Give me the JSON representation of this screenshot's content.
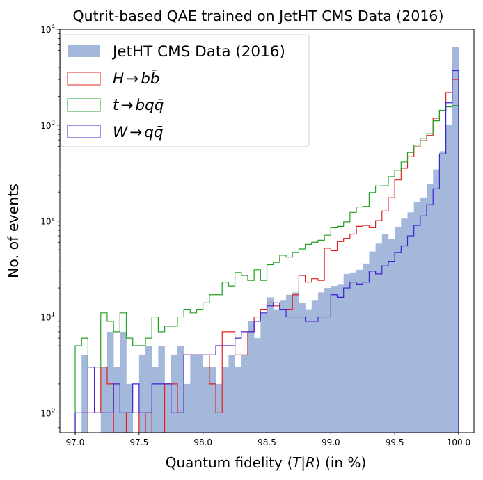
{
  "chart_data": {
    "type": "histogram",
    "title": "Qutrit-based QAE trained on JetHT CMS Data (2016)",
    "xlabel_text": "Quantum fidelity ⟨",
    "xlabel_T": "T",
    "xlabel_bar": "|",
    "xlabel_R": "R",
    "xlabel_tail": "⟩ (in %)",
    "ylabel": "No. of events",
    "yscale": "log",
    "xlim": [
      96.88,
      100.12
    ],
    "ylim": [
      0.62,
      10000
    ],
    "bin_edges_range": [
      97.0,
      100.0
    ],
    "n_bins": 60,
    "x_ticks": [
      {
        "value": 97.0,
        "label": "97.0"
      },
      {
        "value": 97.5,
        "label": "97.5"
      },
      {
        "value": 98.0,
        "label": "98.0"
      },
      {
        "value": 98.5,
        "label": "98.5"
      },
      {
        "value": 99.0,
        "label": "99.0"
      },
      {
        "value": 99.5,
        "label": "99.5"
      },
      {
        "value": 100.0,
        "label": "100.0"
      }
    ],
    "y_ticks": [
      {
        "value": 1,
        "base": "10",
        "exp": "0"
      },
      {
        "value": 10,
        "base": "10",
        "exp": "1"
      },
      {
        "value": 100,
        "base": "10",
        "exp": "2"
      },
      {
        "value": 1000,
        "base": "10",
        "exp": "3"
      },
      {
        "value": 10000,
        "base": "10",
        "exp": "4"
      }
    ],
    "legend_position": "upper-left",
    "series": [
      {
        "name": "JetHT CMS Data (2016)",
        "style": "filled",
        "color": "#a4b8db",
        "values": [
          0,
          4,
          0,
          0,
          3,
          7,
          3,
          7,
          2,
          0,
          4,
          5,
          3,
          5,
          2,
          4,
          5,
          2,
          4,
          4,
          3,
          3,
          2,
          3,
          4,
          3,
          4,
          9,
          6,
          11,
          16,
          12,
          15,
          17,
          18,
          14,
          12,
          15,
          18,
          20,
          21,
          22,
          28,
          29,
          31,
          36,
          48,
          58,
          73,
          65,
          86,
          106,
          123,
          158,
          176,
          243,
          345,
          534,
          1000,
          6500
        ]
      },
      {
        "name_parts": {
          "a": "H",
          "arrow": "→",
          "b": "b",
          "c": "b̄"
        },
        "style": "step",
        "color": "#e02020",
        "values": [
          0,
          0,
          1,
          1,
          3,
          2,
          0,
          0,
          1,
          1,
          0,
          1,
          0,
          0,
          2,
          2,
          1,
          4,
          4,
          4,
          4,
          2,
          1,
          7,
          7,
          4,
          4,
          7,
          10,
          12,
          14,
          13,
          12,
          12,
          17,
          27,
          23,
          25,
          24,
          52,
          49,
          61,
          66,
          73,
          88,
          90,
          85,
          101,
          127,
          175,
          268,
          355,
          468,
          593,
          688,
          780,
          1180,
          1420,
          2190,
          3000
        ]
      },
      {
        "name_parts": {
          "a": "t",
          "arrow": "→",
          "b": "b",
          "c": "q",
          "d": "q̄"
        },
        "style": "step",
        "color": "#22a022",
        "values": [
          5,
          6,
          3,
          3,
          11,
          9,
          7,
          11,
          6,
          5,
          5,
          6,
          10,
          7,
          8,
          8,
          10,
          12,
          11,
          12,
          14,
          17,
          17,
          23,
          21,
          29,
          27,
          24,
          31,
          24,
          35,
          37,
          44,
          42,
          47,
          51,
          57,
          60,
          63,
          71,
          85,
          88,
          98,
          123,
          140,
          142,
          198,
          232,
          233,
          290,
          338,
          412,
          519,
          618,
          731,
          813,
          1110,
          1430,
          1550,
          1600
        ]
      },
      {
        "name_parts": {
          "a": "W",
          "arrow": "→",
          "b": "q",
          "c": "q̄"
        },
        "style": "step",
        "color": "#4020d0",
        "values": [
          1,
          1,
          3,
          1,
          1,
          1,
          2,
          1,
          1,
          2,
          1,
          1,
          2,
          2,
          2,
          1,
          1,
          4,
          4,
          4,
          4,
          4,
          5,
          5,
          5,
          6,
          7,
          7,
          9,
          11,
          13,
          14,
          12,
          10,
          10,
          10,
          9,
          9,
          10,
          10,
          17,
          16,
          20,
          23,
          22,
          23,
          30,
          28,
          34,
          38,
          47,
          55,
          70,
          90,
          113,
          148,
          217,
          500,
          1710,
          3700
        ]
      }
    ]
  }
}
